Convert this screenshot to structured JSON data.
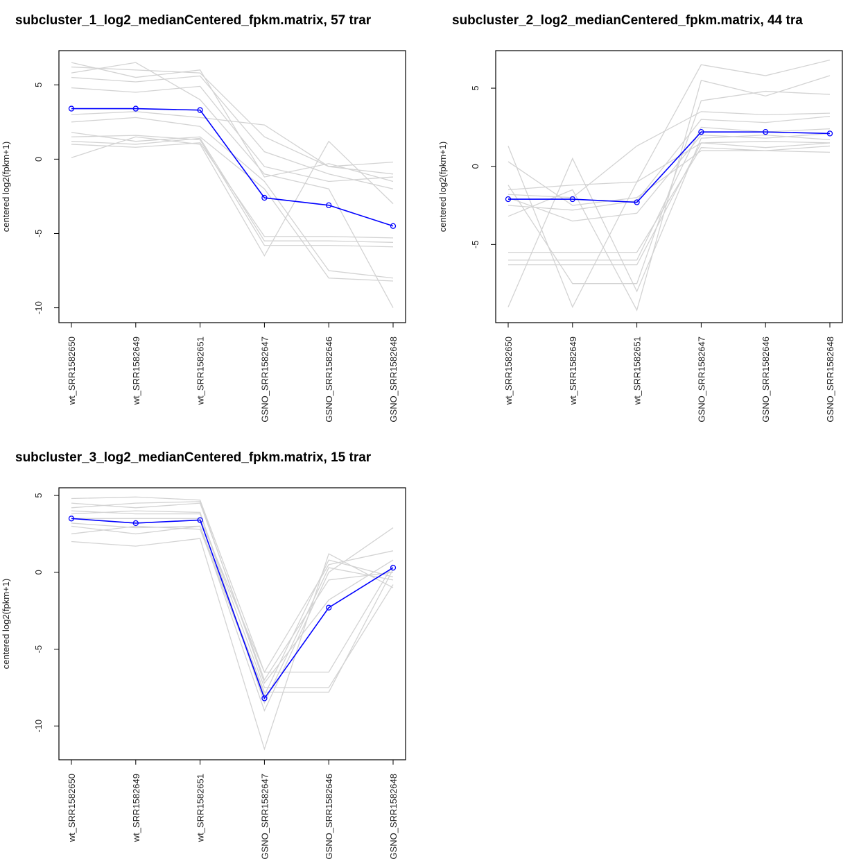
{
  "chart_data": [
    {
      "type": "line",
      "title": "subcluster_1_log2_medianCentered_fpkm.matrix, 57 trar",
      "ylabel": "centered log2(fpkm+1)",
      "categories": [
        "wt_SRR1582650",
        "wt_SRR1582649",
        "wt_SRR1582651",
        "GSNO_SRR1582647",
        "GSNO_SRR1582646",
        "GSNO_SRR1582648"
      ],
      "ylim": [
        -11,
        7.3
      ],
      "yticks": [
        -10,
        -5,
        0,
        5
      ],
      "series": [
        {
          "color": "#d3d3d3",
          "values": [
            6.2,
            6.0,
            5.8,
            1.5,
            -0.5,
            -1.0
          ]
        },
        {
          "color": "#d3d3d3",
          "values": [
            5.5,
            5.2,
            5.6,
            0.5,
            -1.0,
            -2.0
          ]
        },
        {
          "color": "#d3d3d3",
          "values": [
            4.8,
            4.5,
            4.9,
            -0.5,
            -1.5,
            -1.2
          ]
        },
        {
          "color": "#d3d3d3",
          "values": [
            1.2,
            1.0,
            1.4,
            -5.5,
            -5.5,
            -5.6
          ]
        },
        {
          "color": "#d3d3d3",
          "values": [
            1.5,
            1.6,
            1.3,
            -5.8,
            -5.8,
            -5.9
          ]
        },
        {
          "color": "#d3d3d3",
          "values": [
            2.5,
            2.8,
            2.2,
            -1.5,
            -7.5,
            -8.0
          ]
        },
        {
          "color": "#d3d3d3",
          "values": [
            0.1,
            1.5,
            1.0,
            -6.5,
            1.2,
            -3.0
          ]
        },
        {
          "color": "#d3d3d3",
          "values": [
            3.0,
            3.2,
            2.8,
            2.3,
            -0.5,
            -0.2
          ]
        },
        {
          "color": "#d3d3d3",
          "values": [
            5.8,
            6.5,
            4.0,
            -1.0,
            -2.0,
            -10.0
          ]
        },
        {
          "color": "#d3d3d3",
          "values": [
            1.8,
            1.2,
            1.5,
            -2.0,
            -8.0,
            -8.2
          ]
        },
        {
          "color": "#d3d3d3",
          "values": [
            6.5,
            5.5,
            6.0,
            -1.2,
            -0.3,
            -1.5
          ]
        },
        {
          "color": "#d3d3d3",
          "values": [
            1.0,
            0.8,
            1.1,
            -5.2,
            -5.2,
            -5.3
          ]
        },
        {
          "color": "#0000ff",
          "values": [
            3.4,
            3.4,
            3.3,
            -2.6,
            -3.1,
            -4.5
          ],
          "markers": true
        }
      ]
    },
    {
      "type": "line",
      "title": "subcluster_2_log2_medianCentered_fpkm.matrix, 44 tra",
      "ylabel": "centered log2(fpkm+1)",
      "categories": [
        "wt_SRR1582650",
        "wt_SRR1582649",
        "wt_SRR1582651",
        "GSNO_SRR1582647",
        "GSNO_SRR1582646",
        "GSNO_SRR1582648"
      ],
      "ylim": [
        -10,
        7.4
      ],
      "yticks": [
        -5,
        0,
        5
      ],
      "series": [
        {
          "color": "#d3d3d3",
          "values": [
            -1.5,
            -1.2,
            -1.0,
            1.5,
            1.2,
            1.5
          ]
        },
        {
          "color": "#d3d3d3",
          "values": [
            -2.5,
            -2.8,
            -2.2,
            3.0,
            2.8,
            3.2
          ]
        },
        {
          "color": "#d3d3d3",
          "values": [
            1.3,
            -9.0,
            -1.0,
            6.5,
            5.8,
            6.8
          ]
        },
        {
          "color": "#d3d3d3",
          "values": [
            -9.0,
            0.5,
            -8.0,
            1.8,
            2.0,
            1.7
          ]
        },
        {
          "color": "#d3d3d3",
          "values": [
            -5.5,
            -5.5,
            -5.5,
            1.2,
            1.0,
            1.3
          ]
        },
        {
          "color": "#d3d3d3",
          "values": [
            -6.0,
            -6.0,
            -6.0,
            2.5,
            2.2,
            2.4
          ]
        },
        {
          "color": "#d3d3d3",
          "values": [
            -1.8,
            -2.0,
            1.3,
            3.5,
            3.3,
            3.4
          ]
        },
        {
          "color": "#d3d3d3",
          "values": [
            -3.2,
            -1.5,
            -9.2,
            5.5,
            4.5,
            5.8
          ]
        },
        {
          "color": "#d3d3d3",
          "values": [
            0.3,
            -2.5,
            -2.0,
            1.0,
            1.0,
            0.9
          ]
        },
        {
          "color": "#d3d3d3",
          "values": [
            -6.3,
            -6.3,
            -6.3,
            1.5,
            1.6,
            1.5
          ]
        },
        {
          "color": "#d3d3d3",
          "values": [
            -1.2,
            -7.5,
            -7.5,
            4.2,
            4.8,
            4.6
          ]
        },
        {
          "color": "#d3d3d3",
          "values": [
            -2.0,
            -3.5,
            -3.0,
            2.0,
            1.8,
            2.1
          ]
        },
        {
          "color": "#0000ff",
          "values": [
            -2.1,
            -2.1,
            -2.3,
            2.2,
            2.2,
            2.1
          ],
          "markers": true
        }
      ]
    },
    {
      "type": "line",
      "title": "subcluster_3_log2_medianCentered_fpkm.matrix, 15 trar",
      "ylabel": "centered log2(fpkm+1)",
      "categories": [
        "wt_SRR1582650",
        "wt_SRR1582649",
        "wt_SRR1582651",
        "GSNO_SRR1582647",
        "GSNO_SRR1582646",
        "GSNO_SRR1582648"
      ],
      "ylim": [
        -12.2,
        5.5
      ],
      "yticks": [
        -10,
        -5,
        0,
        5
      ],
      "series": [
        {
          "color": "#d3d3d3",
          "values": [
            4.8,
            4.9,
            4.7,
            -6.5,
            0.5,
            1.4
          ]
        },
        {
          "color": "#d3d3d3",
          "values": [
            4.5,
            4.2,
            4.5,
            -7.0,
            -0.5,
            0
          ]
        },
        {
          "color": "#d3d3d3",
          "values": [
            2.0,
            1.7,
            2.2,
            -11.5,
            1.2,
            -1.0
          ]
        },
        {
          "color": "#d3d3d3",
          "values": [
            3.0,
            2.5,
            3.0,
            -9.0,
            0.0,
            2.9
          ]
        },
        {
          "color": "#d3d3d3",
          "values": [
            4.0,
            3.8,
            3.8,
            -7.5,
            -7.5,
            -0.8
          ]
        },
        {
          "color": "#d3d3d3",
          "values": [
            3.5,
            3.5,
            3.5,
            -6.5,
            -6.5,
            0.5
          ]
        },
        {
          "color": "#d3d3d3",
          "values": [
            2.5,
            3.0,
            2.8,
            -8.0,
            0.8,
            -0.3
          ]
        },
        {
          "color": "#d3d3d3",
          "values": [
            4.2,
            4.5,
            4.6,
            -7.2,
            -1.8,
            0.8
          ]
        },
        {
          "color": "#d3d3d3",
          "values": [
            3.2,
            2.9,
            3.0,
            -7.8,
            -7.8,
            0.2
          ]
        },
        {
          "color": "#d3d3d3",
          "values": [
            3.8,
            4.0,
            3.9,
            -8.5,
            0.3,
            -0.5
          ]
        },
        {
          "color": "#0000ff",
          "values": [
            3.5,
            3.2,
            3.4,
            -8.2,
            -2.3,
            0.3
          ],
          "markers": true
        }
      ]
    }
  ]
}
